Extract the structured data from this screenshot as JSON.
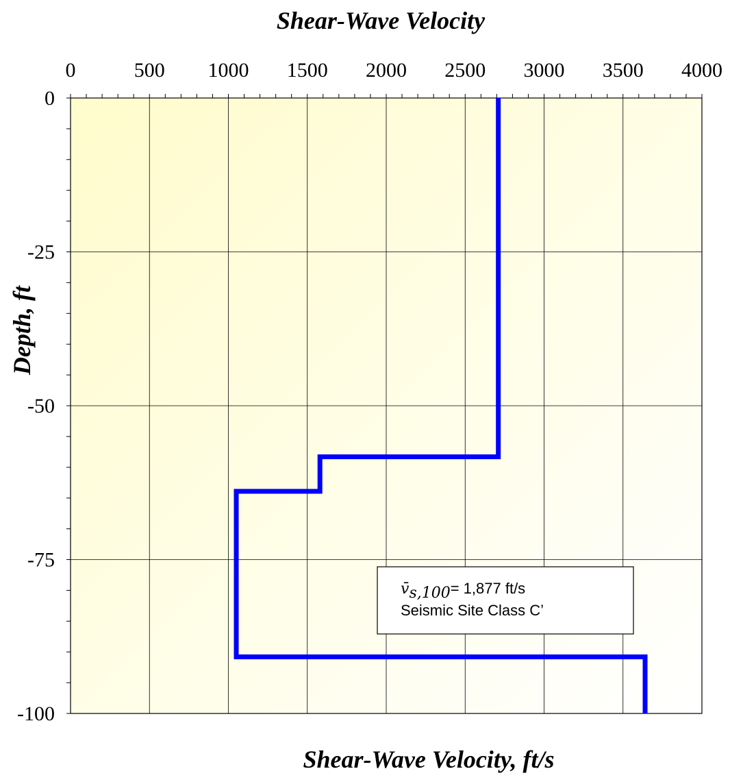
{
  "chart_data": {
    "type": "line",
    "title": "Shear-Wave Velocity",
    "xlabel": "Shear-Wave Velocity, ft/s",
    "ylabel": "Depth, ft",
    "xlim": [
      0,
      4000
    ],
    "ylim": [
      -100,
      0
    ],
    "x_ticks": [
      "0",
      "500",
      "1000",
      "1500",
      "2000",
      "2500",
      "3000",
      "3500",
      "4000"
    ],
    "y_ticks": [
      "0",
      "-25",
      "-50",
      "-75",
      "-100"
    ],
    "x_axis_position": "top",
    "grid": true,
    "series": [
      {
        "color": "#0000ff",
        "points": [
          {
            "x": 2710,
            "y": 0
          },
          {
            "x": 2710,
            "y": -58.3
          },
          {
            "x": 1580,
            "y": -58.3
          },
          {
            "x": 1580,
            "y": -63.9
          },
          {
            "x": 1050,
            "y": -63.9
          },
          {
            "x": 1050,
            "y": -90.8
          },
          {
            "x": 3640,
            "y": -90.8
          },
          {
            "x": 3640,
            "y": -100
          }
        ]
      }
    ],
    "annotation": {
      "symbol": "v̄",
      "subscript": "s,100",
      "value_text": "= 1,877 ft/s",
      "line2": "Seismic Site Class C’"
    },
    "background_gradient": [
      "#fffccc",
      "#ffffff"
    ]
  }
}
